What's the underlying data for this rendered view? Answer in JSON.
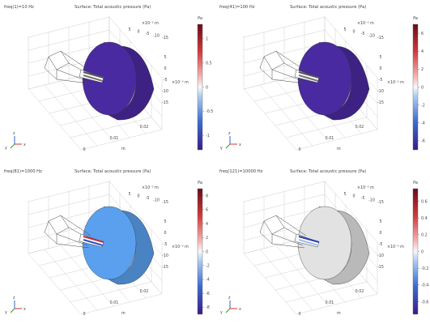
{
  "chart_data": [
    {
      "type": "heatmap",
      "param_label": "freq(1)=10 Hz",
      "title": "Surface: Total acoustic pressure (Pa)",
      "colorbar": {
        "unit": "Pa",
        "ticks": [
          1,
          0.5,
          0,
          -0.5,
          -1
        ],
        "range": [
          -1.3,
          1.3
        ]
      },
      "axis_ticks": {
        "a": [
          "5",
          "0",
          "-5",
          "-10",
          "-15"
        ],
        "b": [
          "0.02",
          "0.01",
          "0"
        ],
        "c": [
          "5",
          "0",
          "-5",
          "-10",
          "-15"
        ]
      },
      "axis_units": {
        "a": "×10⁻³ m",
        "b": "m",
        "c": "×10⁻³ m"
      },
      "surface_color": "#4a2aa0"
    },
    {
      "type": "heatmap",
      "param_label": "freq(41)=100 Hz",
      "title": "Surface: Total acoustic pressure (Pa)",
      "colorbar": {
        "unit": "Pa",
        "ticks": [
          6,
          4,
          2,
          0,
          -2,
          -4,
          -6
        ],
        "range": [
          -7,
          7
        ]
      },
      "axis_ticks": {
        "a": [
          "5",
          "0",
          "-5",
          "-10",
          "-15"
        ],
        "b": [
          "0.02",
          "0.01",
          "0"
        ],
        "c": [
          "5",
          "0",
          "-5",
          "-10",
          "-15"
        ]
      },
      "axis_units": {
        "a": "×10⁻³ m",
        "b": "m",
        "c": "×10⁻³ m"
      },
      "surface_color": "#4a2aa0"
    },
    {
      "type": "heatmap",
      "param_label": "freq(81)=1000 Hz",
      "title": "Surface: Total acoustic pressure (Pa)",
      "colorbar": {
        "unit": "Pa",
        "ticks": [
          8,
          6,
          4,
          2,
          0,
          -2,
          -4,
          -6,
          -8
        ],
        "range": [
          -9,
          9
        ]
      },
      "axis_ticks": {
        "a": [
          "5",
          "0",
          "-5",
          "-10",
          "-15"
        ],
        "b": [
          "0.02",
          "0.01",
          "0"
        ],
        "c": [
          "5",
          "0",
          "-5",
          "-10",
          "-15"
        ]
      },
      "axis_units": {
        "a": "×10⁻³ m",
        "b": "m",
        "c": "×10⁻³ m"
      },
      "surface_color": "#5aa0ee"
    },
    {
      "type": "heatmap",
      "param_label": "freq(121)=10000 Hz",
      "title": "Surface: Total acoustic pressure (Pa)",
      "colorbar": {
        "unit": "Pa",
        "ticks": [
          0.6,
          0.4,
          0.2,
          0,
          -0.2,
          -0.4,
          -0.6
        ],
        "range": [
          -0.75,
          0.75
        ]
      },
      "axis_ticks": {
        "a": [
          "5",
          "0",
          "-5",
          "-10",
          "-15"
        ],
        "b": [
          "0.02",
          "0.01",
          "0"
        ],
        "c": [
          "5",
          "0",
          "-5",
          "-10",
          "-15"
        ]
      },
      "axis_units": {
        "a": "×10⁻³ m",
        "b": "m",
        "c": "×10⁻³ m"
      },
      "surface_color": "#e2e2e2"
    }
  ],
  "triad": {
    "x": "x",
    "y": "y",
    "z": "z"
  },
  "colors": {
    "x": "#d43030",
    "y": "#2a9a2a",
    "z": "#3060c8"
  }
}
